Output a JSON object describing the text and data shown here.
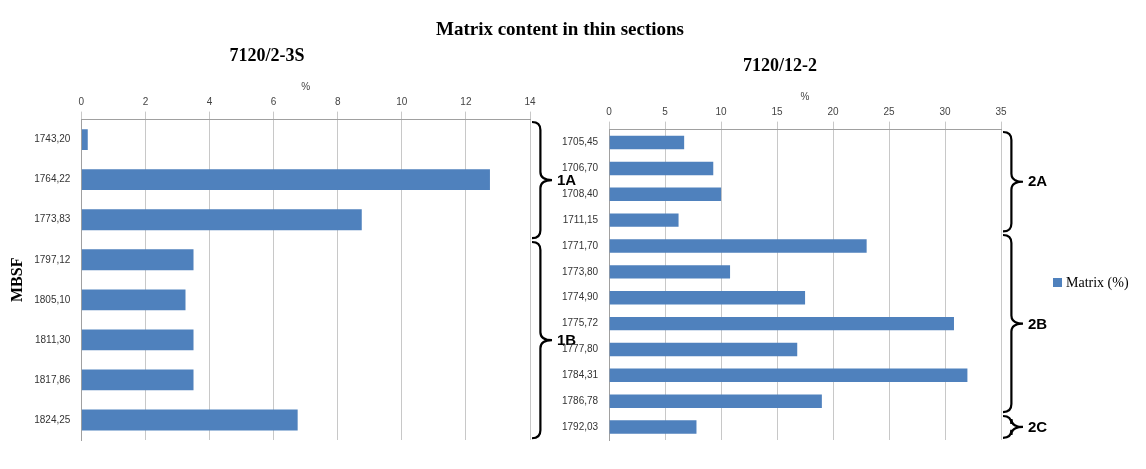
{
  "chart_data": [
    {
      "type": "bar",
      "orientation": "horizontal",
      "title": "Matrix content in thin sections",
      "subtitle": "7120/2-3S",
      "xlabel": "%",
      "ylabel": "MBSF",
      "categories": [
        "1743,20",
        "1764,22",
        "1773,83",
        "1797,12",
        "1805,10",
        "1811,30",
        "1817,86",
        "1824,25"
      ],
      "series": [
        {
          "color": "#4f81bd",
          "values": [
            0.2,
            12.75,
            8.75,
            3.5,
            3.25,
            3.5,
            3.5,
            6.75
          ]
        }
      ],
      "xlim": [
        0,
        14
      ],
      "xticks": [
        0,
        2,
        4,
        6,
        8,
        10,
        12,
        14
      ],
      "grid": "x",
      "legend": false,
      "annotations": [
        "1A",
        "1B"
      ]
    },
    {
      "type": "bar",
      "orientation": "horizontal",
      "title": "7120/12-2",
      "xlabel": "%",
      "categories": [
        "1705,45",
        "1706,70",
        "1708,40",
        "1711,15",
        "1771,70",
        "1773,80",
        "1774,90",
        "1775,72",
        "1777,80",
        "1784,31",
        "1786,78",
        "1792,03"
      ],
      "series": [
        {
          "name": "Matrix (%)",
          "color": "#4f81bd",
          "values": [
            6.7,
            9.3,
            10,
            6.2,
            23,
            10.8,
            17.5,
            30.8,
            16.8,
            32,
            19,
            7.8
          ]
        }
      ],
      "xlim": [
        0,
        35
      ],
      "xticks": [
        0,
        5,
        10,
        15,
        20,
        25,
        30,
        35
      ],
      "grid": "x",
      "legend": "right",
      "annotations": [
        "2A",
        "2B",
        "2C"
      ]
    }
  ]
}
